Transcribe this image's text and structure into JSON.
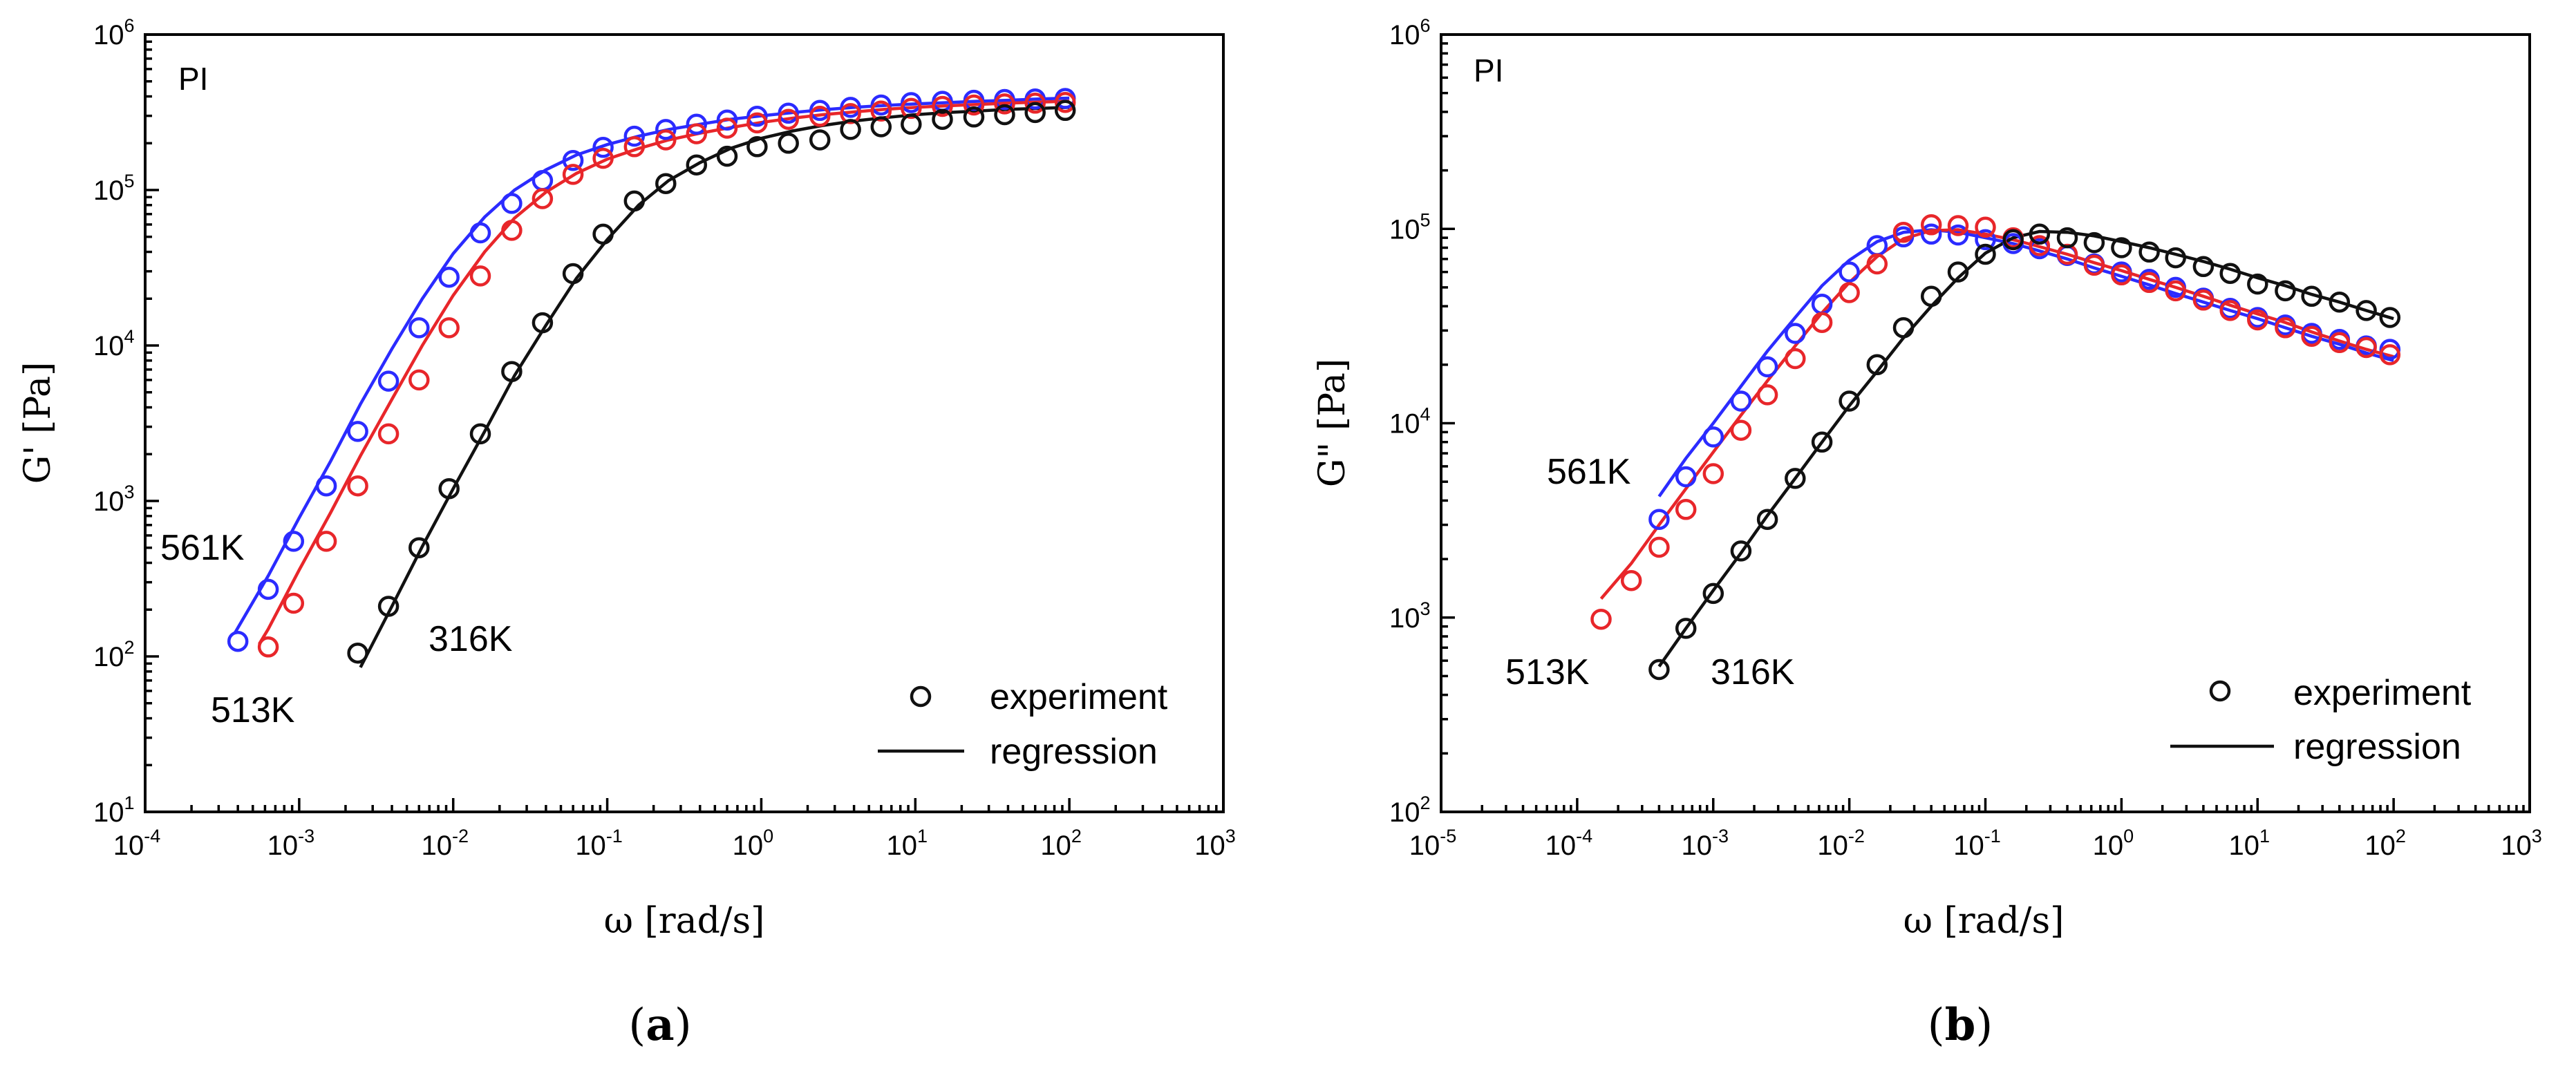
{
  "chart_data": [
    {
      "type": "scatter",
      "panel": "a",
      "title": "PI",
      "xlabel": "ω [rad/s]",
      "ylabel": "G' [Pa]",
      "x_scale": "log",
      "y_scale": "log",
      "xlim": [
        0.0001,
        1000
      ],
      "ylim": [
        10,
        1000000
      ],
      "x_ticks": [
        {
          "base": "10",
          "exp": "-4"
        },
        {
          "base": "10",
          "exp": "-3"
        },
        {
          "base": "10",
          "exp": "-2"
        },
        {
          "base": "10",
          "exp": "-1"
        },
        {
          "base": "10",
          "exp": "0"
        },
        {
          "base": "10",
          "exp": "1"
        },
        {
          "base": "10",
          "exp": "2"
        },
        {
          "base": "10",
          "exp": "3"
        }
      ],
      "y_ticks": [
        {
          "base": "10",
          "exp": "1"
        },
        {
          "base": "10",
          "exp": "2"
        },
        {
          "base": "10",
          "exp": "3"
        },
        {
          "base": "10",
          "exp": "4"
        },
        {
          "base": "10",
          "exp": "5"
        },
        {
          "base": "10",
          "exp": "6"
        }
      ],
      "series": [
        {
          "name": "561K",
          "color": "#2b2bff",
          "x": [
            0.0004,
            0.00063,
            0.00092,
            0.0015,
            0.0024,
            0.0038,
            0.006,
            0.0094,
            0.015,
            0.024,
            0.038,
            0.06,
            0.094,
            0.15,
            0.24,
            0.38,
            0.6,
            0.94,
            1.5,
            2.4,
            3.8,
            6,
            9.4,
            15,
            24,
            38,
            60,
            94
          ],
          "y": [
            125,
            270,
            550,
            1250,
            2800,
            5900,
            13000,
            27500,
            53000,
            82000,
            115000,
            155000,
            188000,
            222000,
            245000,
            265000,
            282000,
            298000,
            312000,
            325000,
            340000,
            352000,
            365000,
            372000,
            378000,
            382000,
            385000,
            388000
          ]
        },
        {
          "name": "513K",
          "color": "#e8262a",
          "x": [
            0.00063,
            0.00092,
            0.0015,
            0.0024,
            0.0038,
            0.006,
            0.0094,
            0.015,
            0.024,
            0.038,
            0.06,
            0.094,
            0.15,
            0.24,
            0.38,
            0.6,
            0.94,
            1.5,
            2.4,
            3.8,
            6,
            9.4,
            15,
            24,
            38,
            60,
            94
          ],
          "y": [
            115,
            220,
            550,
            1250,
            2700,
            6000,
            13000,
            28000,
            55000,
            88000,
            126000,
            160000,
            190000,
            210000,
            230000,
            250000,
            270000,
            285000,
            298000,
            310000,
            322000,
            335000,
            345000,
            352000,
            358000,
            362000,
            366000
          ]
        },
        {
          "name": "316K",
          "color": "#111111",
          "x": [
            0.0024,
            0.0038,
            0.006,
            0.0094,
            0.015,
            0.024,
            0.038,
            0.06,
            0.094,
            0.15,
            0.24,
            0.38,
            0.6,
            0.94,
            1.5,
            2.4,
            3.8,
            6,
            9.4,
            15,
            24,
            38,
            60,
            94
          ],
          "y": [
            105,
            210,
            500,
            1200,
            2700,
            6800,
            14000,
            29000,
            52000,
            85000,
            110000,
            145000,
            165000,
            190000,
            200000,
            210000,
            245000,
            255000,
            265000,
            285000,
            295000,
            305000,
            315000,
            325000
          ]
        }
      ],
      "fit_lines": [
        {
          "name": "561K",
          "color": "#2b2bff",
          "x": [
            0.00038,
            0.00063,
            0.001,
            0.0016,
            0.0025,
            0.004,
            0.0063,
            0.01,
            0.016,
            0.025,
            0.04,
            0.063,
            0.1,
            0.16,
            0.25,
            0.4,
            0.63,
            1,
            1.6,
            2.5,
            4,
            6.3,
            10,
            16,
            25,
            40,
            63,
            100
          ],
          "y": [
            140,
            330,
            780,
            1800,
            4200,
            9500,
            20000,
            39000,
            67000,
            100000,
            135000,
            168000,
            196000,
            222000,
            245000,
            265000,
            285000,
            300000,
            315000,
            328000,
            340000,
            350000,
            358000,
            365000,
            372000,
            378000,
            385000,
            390000
          ]
        },
        {
          "name": "513K",
          "color": "#e8262a",
          "x": [
            0.00055,
            0.00063,
            0.001,
            0.0016,
            0.0025,
            0.004,
            0.0063,
            0.01,
            0.016,
            0.025,
            0.04,
            0.063,
            0.1,
            0.16,
            0.25,
            0.4,
            0.63,
            1,
            1.6,
            2.5,
            4,
            6.3,
            10,
            16,
            25,
            40,
            63,
            100
          ],
          "y": [
            120,
            150,
            360,
            840,
            1950,
            4500,
            10000,
            21000,
            40000,
            66000,
            97000,
            128000,
            158000,
            185000,
            210000,
            232000,
            252000,
            272000,
            290000,
            305000,
            318000,
            330000,
            340000,
            348000,
            355000,
            362000,
            368000,
            372000
          ]
        },
        {
          "name": "316K",
          "color": "#111111",
          "x": [
            0.0025,
            0.004,
            0.0063,
            0.01,
            0.016,
            0.025,
            0.04,
            0.063,
            0.1,
            0.16,
            0.25,
            0.4,
            0.63,
            1,
            1.6,
            2.5,
            4,
            6.3,
            10,
            16,
            25,
            40,
            63,
            100
          ],
          "y": [
            85,
            210,
            510,
            1200,
            2800,
            6400,
            13500,
            27000,
            48000,
            80000,
            115000,
            150000,
            185000,
            215000,
            240000,
            260000,
            278000,
            292000,
            305000,
            315000,
            322000,
            330000,
            335000,
            340000
          ]
        }
      ],
      "annotations": [
        "561K",
        "513K",
        "316K"
      ],
      "legend": {
        "position": "bottom-right",
        "entries": [
          "experiment",
          "regression"
        ]
      },
      "caption": "a"
    },
    {
      "type": "scatter",
      "panel": "b",
      "title": "PI",
      "xlabel": "ω [rad/s]",
      "ylabel": "G\" [Pa]",
      "x_scale": "log",
      "y_scale": "log",
      "xlim": [
        1e-05,
        1000
      ],
      "ylim": [
        100,
        1000000
      ],
      "x_ticks": [
        {
          "base": "10",
          "exp": "-5"
        },
        {
          "base": "10",
          "exp": "-4"
        },
        {
          "base": "10",
          "exp": "-3"
        },
        {
          "base": "10",
          "exp": "-2"
        },
        {
          "base": "10",
          "exp": "-1"
        },
        {
          "base": "10",
          "exp": "0"
        },
        {
          "base": "10",
          "exp": "1"
        },
        {
          "base": "10",
          "exp": "2"
        },
        {
          "base": "10",
          "exp": "3"
        }
      ],
      "y_ticks": [
        {
          "base": "10",
          "exp": "2"
        },
        {
          "base": "10",
          "exp": "3"
        },
        {
          "base": "10",
          "exp": "4"
        },
        {
          "base": "10",
          "exp": "5"
        },
        {
          "base": "10",
          "exp": "6"
        }
      ],
      "series": [
        {
          "name": "561K",
          "color": "#2b2bff",
          "x": [
            0.0004,
            0.00063,
            0.001,
            0.0016,
            0.0025,
            0.004,
            0.0063,
            0.01,
            0.016,
            0.025,
            0.04,
            0.063,
            0.1,
            0.16,
            0.25,
            0.4,
            0.63,
            1,
            1.6,
            2.5,
            4,
            6.3,
            10,
            16,
            25,
            40,
            63,
            94
          ],
          "y": [
            3200,
            5300,
            8500,
            13000,
            19500,
            29000,
            41000,
            60000,
            82000,
            91000,
            94000,
            93000,
            88000,
            84000,
            79000,
            73000,
            66000,
            60000,
            55000,
            50000,
            44000,
            39000,
            35000,
            32000,
            29000,
            27000,
            25000,
            24000
          ]
        },
        {
          "name": "513K",
          "color": "#e8262a",
          "x": [
            0.00015,
            0.00025,
            0.0004,
            0.00063,
            0.001,
            0.0016,
            0.0025,
            0.004,
            0.0063,
            0.01,
            0.016,
            0.025,
            0.04,
            0.063,
            0.1,
            0.16,
            0.25,
            0.4,
            0.63,
            1,
            1.6,
            2.5,
            4,
            6.3,
            10,
            16,
            25,
            40,
            63,
            94
          ],
          "y": [
            980,
            1550,
            2300,
            3600,
            5500,
            9200,
            14000,
            21500,
            33000,
            47000,
            66000,
            96000,
            105000,
            104000,
            102000,
            90000,
            82000,
            74000,
            65000,
            58000,
            53000,
            48000,
            43000,
            38000,
            34000,
            31000,
            28000,
            26000,
            24500,
            22500
          ]
        },
        {
          "name": "316K",
          "color": "#111111",
          "x": [
            0.0004,
            0.00063,
            0.001,
            0.0016,
            0.0025,
            0.004,
            0.0063,
            0.01,
            0.016,
            0.025,
            0.04,
            0.063,
            0.1,
            0.16,
            0.25,
            0.4,
            0.63,
            1,
            1.6,
            2.5,
            4,
            6.3,
            10,
            16,
            25,
            40,
            63,
            94
          ],
          "y": [
            540,
            880,
            1330,
            2200,
            3200,
            5200,
            8000,
            13000,
            20000,
            31000,
            45000,
            60000,
            74000,
            88000,
            94000,
            90000,
            85000,
            80000,
            76000,
            71000,
            64000,
            59000,
            52000,
            48000,
            45000,
            42000,
            38000,
            35000
          ]
        }
      ],
      "fit_lines": [
        {
          "name": "561K",
          "color": "#2b2bff",
          "x": [
            0.0004,
            0.00063,
            0.001,
            0.0016,
            0.0025,
            0.004,
            0.0063,
            0.01,
            0.016,
            0.025,
            0.04,
            0.063,
            0.1,
            0.16,
            0.25,
            0.4,
            0.63,
            1,
            1.6,
            2.5,
            4,
            6.3,
            10,
            16,
            25,
            40,
            63,
            100
          ],
          "y": [
            4200,
            6600,
            10000,
            15500,
            23500,
            35000,
            51000,
            69000,
            86000,
            96000,
            99000,
            96000,
            90000,
            84000,
            77000,
            70000,
            63000,
            57000,
            51500,
            46500,
            42000,
            38000,
            34500,
            31000,
            28000,
            25500,
            23000,
            21000
          ]
        },
        {
          "name": "513K",
          "color": "#e8262a",
          "x": [
            0.00015,
            0.00025,
            0.0004,
            0.00063,
            0.001,
            0.0016,
            0.0025,
            0.004,
            0.0063,
            0.01,
            0.016,
            0.025,
            0.04,
            0.063,
            0.1,
            0.16,
            0.25,
            0.4,
            0.63,
            1,
            1.6,
            2.5,
            4,
            6.3,
            10,
            16,
            25,
            40,
            63,
            100
          ],
          "y": [
            1250,
            1900,
            3000,
            4600,
            7100,
            11000,
            16500,
            25000,
            37000,
            53000,
            72000,
            89000,
            98000,
            99000,
            94000,
            88000,
            81000,
            74000,
            67000,
            61000,
            55000,
            50000,
            45000,
            40500,
            36500,
            33000,
            29500,
            26500,
            24000,
            22000
          ]
        },
        {
          "name": "316K",
          "color": "#111111",
          "x": [
            0.0004,
            0.00063,
            0.001,
            0.0016,
            0.0025,
            0.004,
            0.0063,
            0.01,
            0.016,
            0.025,
            0.04,
            0.063,
            0.1,
            0.16,
            0.25,
            0.4,
            0.63,
            1,
            1.6,
            2.5,
            4,
            6.3,
            10,
            16,
            25,
            40,
            63,
            100
          ],
          "y": [
            560,
            880,
            1380,
            2150,
            3350,
            5200,
            8000,
            12300,
            18500,
            27500,
            40000,
            56000,
            75000,
            90000,
            97000,
            96000,
            92000,
            86000,
            80000,
            74000,
            68000,
            62000,
            56000,
            51000,
            46000,
            42000,
            38000,
            34500
          ]
        }
      ],
      "annotations": [
        "561K",
        "513K",
        "316K"
      ],
      "legend": {
        "position": "bottom-right",
        "entries": [
          "experiment",
          "regression"
        ]
      },
      "caption": "b"
    }
  ]
}
